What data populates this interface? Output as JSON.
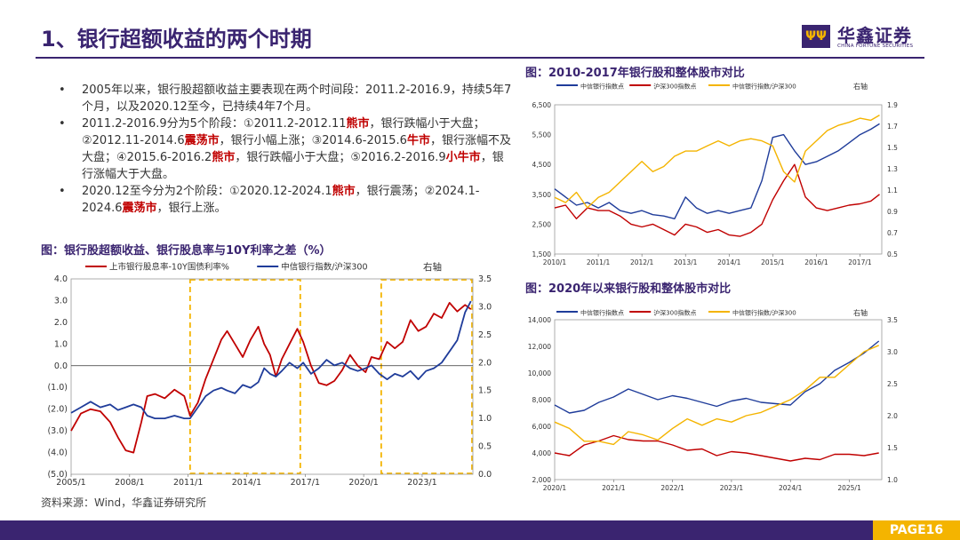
{
  "header": {
    "title": "1、银行超额收益的两个时期"
  },
  "logo": {
    "cn": "华鑫证券",
    "en": "CHINA FORTUNE SECURITIES",
    "mark": "ΨΨ"
  },
  "bullets": [
    {
      "segments": [
        {
          "t": "2005年以来，银行股超额收益主要表现在两个时间段：2011.2-2016.9，持续5年7个月，以及2020.12至今，已持续4年7个月。",
          "r": false
        }
      ]
    },
    {
      "segments": [
        {
          "t": "2011.2-2016.9分为5个阶段：①2011.2-2012.11",
          "r": false
        },
        {
          "t": "熊市",
          "r": true
        },
        {
          "t": "，银行跌幅小于大盘；②2012.11-2014.6",
          "r": false
        },
        {
          "t": "震荡市",
          "r": true
        },
        {
          "t": "，银行小幅上涨；③2014.6-2015.6",
          "r": false
        },
        {
          "t": "牛市",
          "r": true
        },
        {
          "t": "，银行涨幅不及大盘；④2015.6-2016.2",
          "r": false
        },
        {
          "t": "熊市",
          "r": true
        },
        {
          "t": "，银行跌幅小于大盘；⑤2016.2-2016.9",
          "r": false
        },
        {
          "t": "小牛市",
          "r": true
        },
        {
          "t": "，银行涨幅大于大盘。",
          "r": false
        }
      ]
    },
    {
      "segments": [
        {
          "t": "2020.12至今分为2个阶段：①2020.12-2024.1",
          "r": false
        },
        {
          "t": "熊市",
          "r": true
        },
        {
          "t": "，银行震荡；②2024.1-2024.6",
          "r": false
        },
        {
          "t": "震荡市",
          "r": true
        },
        {
          "t": "，银行上涨。",
          "r": false
        }
      ]
    }
  ],
  "source": "资料来源：Wind，华鑫证券研究所",
  "page": "PAGE16",
  "colors": {
    "red": "#c00000",
    "blue": "#1f3c9a",
    "yellow": "#f4b400",
    "purple": "#3a2470"
  },
  "chart_data": [
    {
      "type": "line",
      "title": "图：银行股超额收益、银行股息率与10Y利率之差（%）",
      "x_ticks": [
        "2005/1",
        "2008/1",
        "2011/1",
        "2014/1",
        "2017/1",
        "2020/1",
        "2023/1"
      ],
      "xlim": [
        2005.0,
        2025.6
      ],
      "left_axis": {
        "ticks": [
          "4.0",
          "3.0",
          "2.0",
          "1.0",
          "0.0",
          "(1.0)",
          "(2.0)",
          "(3.0)",
          "(4.0)",
          "(5.0)"
        ],
        "ylim": [
          -5,
          4
        ]
      },
      "right_axis": {
        "label": "右轴",
        "ticks": [
          "3.5",
          "3.0",
          "2.5",
          "2.0",
          "1.5",
          "1.0",
          "0.5",
          "0.0"
        ],
        "ylim": [
          0,
          3.5
        ]
      },
      "highlight_periods": [
        [
          2011.1,
          2016.75
        ],
        [
          2020.9,
          2025.6
        ]
      ],
      "series": [
        {
          "name": "上市银行股息率-10Y国债利率%",
          "axis": "left",
          "color": "#c00000",
          "x": [
            2005.0,
            2005.5,
            2006.0,
            2006.5,
            2007.0,
            2007.4,
            2007.8,
            2008.2,
            2008.6,
            2008.9,
            2009.3,
            2009.8,
            2010.3,
            2010.8,
            2011.1,
            2011.5,
            2011.9,
            2012.3,
            2012.7,
            2013.0,
            2013.4,
            2013.8,
            2014.2,
            2014.6,
            2014.9,
            2015.2,
            2015.5,
            2015.8,
            2016.2,
            2016.6,
            2016.9,
            2017.3,
            2017.7,
            2018.1,
            2018.5,
            2018.9,
            2019.3,
            2019.7,
            2020.1,
            2020.4,
            2020.8,
            2021.2,
            2021.6,
            2022.0,
            2022.4,
            2022.8,
            2023.2,
            2023.6,
            2024.0,
            2024.4,
            2024.8,
            2025.2,
            2025.5
          ],
          "y": [
            -3.0,
            -2.2,
            -2.0,
            -2.1,
            -2.6,
            -3.3,
            -3.9,
            -4.0,
            -2.6,
            -1.4,
            -1.3,
            -1.5,
            -1.1,
            -1.4,
            -2.3,
            -1.7,
            -0.6,
            0.3,
            1.2,
            1.6,
            1.0,
            0.4,
            1.2,
            1.8,
            1.0,
            0.5,
            -0.5,
            0.3,
            1.0,
            1.7,
            1.1,
            0.0,
            -0.8,
            -0.9,
            -0.7,
            -0.2,
            0.5,
            0.0,
            -0.3,
            0.4,
            0.3,
            1.1,
            0.8,
            1.1,
            2.1,
            1.6,
            1.8,
            2.4,
            2.2,
            2.9,
            2.5,
            2.8,
            2.6
          ]
        },
        {
          "name": "中信银行指数/沪深300",
          "axis": "right",
          "color": "#1f3c9a",
          "x": [
            2005.0,
            2005.5,
            2006.0,
            2006.5,
            2007.0,
            2007.4,
            2007.8,
            2008.2,
            2008.6,
            2008.9,
            2009.3,
            2009.8,
            2010.3,
            2010.8,
            2011.1,
            2011.5,
            2011.9,
            2012.3,
            2012.7,
            2013.0,
            2013.4,
            2013.8,
            2014.2,
            2014.6,
            2014.9,
            2015.2,
            2015.5,
            2015.8,
            2016.2,
            2016.6,
            2016.9,
            2017.3,
            2017.7,
            2018.1,
            2018.5,
            2018.9,
            2019.3,
            2019.7,
            2020.1,
            2020.4,
            2020.8,
            2021.2,
            2021.6,
            2022.0,
            2022.4,
            2022.8,
            2023.2,
            2023.6,
            2024.0,
            2024.4,
            2024.8,
            2025.2,
            2025.5
          ],
          "y": [
            1.1,
            1.2,
            1.3,
            1.2,
            1.25,
            1.15,
            1.2,
            1.25,
            1.2,
            1.05,
            1.0,
            1.0,
            1.05,
            1.0,
            1.0,
            1.2,
            1.4,
            1.5,
            1.55,
            1.5,
            1.45,
            1.6,
            1.55,
            1.65,
            1.9,
            1.8,
            1.75,
            1.85,
            2.0,
            1.9,
            2.0,
            1.8,
            1.9,
            2.05,
            1.95,
            2.0,
            1.9,
            1.85,
            1.9,
            1.95,
            1.8,
            1.7,
            1.8,
            1.75,
            1.85,
            1.7,
            1.85,
            1.9,
            2.0,
            2.2,
            2.4,
            2.9,
            3.1
          ]
        }
      ]
    },
    {
      "type": "line",
      "title": "图：2010-2017年银行股和整体股市对比",
      "x_ticks": [
        "2010/1",
        "2011/1",
        "2012/1",
        "2013/1",
        "2014/1",
        "2015/1",
        "2016/1",
        "2017/1"
      ],
      "xlim": [
        2010.0,
        2017.5
      ],
      "left_axis": {
        "ticks": [
          "6,500",
          "5,500",
          "4,500",
          "3,500",
          "2,500",
          "1,500"
        ],
        "ylim": [
          1500,
          7000
        ]
      },
      "right_axis": {
        "label": "右轴",
        "ticks": [
          "1.9",
          "1.7",
          "1.5",
          "1.3",
          "1.1",
          "0.9",
          "0.7",
          "0.5"
        ],
        "ylim": [
          0.5,
          1.95
        ]
      },
      "series": [
        {
          "name": "中信银行指数点",
          "axis": "left",
          "color": "#1f3c9a",
          "x": [
            2010.0,
            2010.25,
            2010.5,
            2010.75,
            2011.0,
            2011.25,
            2011.5,
            2011.75,
            2012.0,
            2012.25,
            2012.5,
            2012.75,
            2013.0,
            2013.25,
            2013.5,
            2013.75,
            2014.0,
            2014.25,
            2014.5,
            2014.75,
            2015.0,
            2015.25,
            2015.5,
            2015.75,
            2016.0,
            2016.25,
            2016.5,
            2016.75,
            2017.0,
            2017.25,
            2017.45
          ],
          "y": [
            3900,
            3600,
            3300,
            3400,
            3200,
            3400,
            3100,
            3000,
            3100,
            2950,
            2900,
            2800,
            3600,
            3200,
            3000,
            3100,
            3000,
            3100,
            3200,
            4200,
            5800,
            5900,
            5300,
            4800,
            4900,
            5100,
            5300,
            5600,
            5900,
            6100,
            6300
          ]
        },
        {
          "name": "沪深300指数点",
          "axis": "left",
          "color": "#c00000",
          "x": [
            2010.0,
            2010.25,
            2010.5,
            2010.75,
            2011.0,
            2011.25,
            2011.5,
            2011.75,
            2012.0,
            2012.25,
            2012.5,
            2012.75,
            2013.0,
            2013.25,
            2013.5,
            2013.75,
            2014.0,
            2014.25,
            2014.5,
            2014.75,
            2015.0,
            2015.25,
            2015.5,
            2015.75,
            2016.0,
            2016.25,
            2016.5,
            2016.75,
            2017.0,
            2017.25,
            2017.45
          ],
          "y": [
            3200,
            3300,
            2800,
            3200,
            3100,
            3100,
            2900,
            2600,
            2500,
            2600,
            2400,
            2200,
            2600,
            2500,
            2300,
            2400,
            2200,
            2150,
            2300,
            2600,
            3500,
            4200,
            4800,
            3600,
            3200,
            3100,
            3200,
            3300,
            3350,
            3450,
            3700
          ]
        },
        {
          "name": "中信银行指数/沪深300",
          "axis": "right",
          "color": "#f4b400",
          "x": [
            2010.0,
            2010.25,
            2010.5,
            2010.75,
            2011.0,
            2011.25,
            2011.5,
            2011.75,
            2012.0,
            2012.25,
            2012.5,
            2012.75,
            2013.0,
            2013.25,
            2013.5,
            2013.75,
            2014.0,
            2014.25,
            2014.5,
            2014.75,
            2015.0,
            2015.25,
            2015.5,
            2015.75,
            2016.0,
            2016.25,
            2016.5,
            2016.75,
            2017.0,
            2017.25,
            2017.45
          ],
          "y": [
            1.05,
            1.0,
            1.1,
            0.95,
            1.05,
            1.1,
            1.2,
            1.3,
            1.4,
            1.3,
            1.35,
            1.45,
            1.5,
            1.5,
            1.55,
            1.6,
            1.55,
            1.6,
            1.62,
            1.6,
            1.55,
            1.3,
            1.2,
            1.5,
            1.6,
            1.7,
            1.75,
            1.78,
            1.82,
            1.8,
            1.85
          ]
        }
      ]
    },
    {
      "type": "line",
      "title": "图：2020年以来银行股和整体股市对比",
      "x_ticks": [
        "2020/1",
        "2021/1",
        "2022/1",
        "2023/1",
        "2024/1",
        "2025/1"
      ],
      "xlim": [
        2020.0,
        2025.55
      ],
      "left_axis": {
        "ticks": [
          "14,000",
          "12,000",
          "10,000",
          "8,000",
          "6,000",
          "4,000",
          "2,000"
        ],
        "ylim": [
          2000,
          14000
        ]
      },
      "right_axis": {
        "label": "右轴",
        "ticks": [
          "3.5",
          "3.0",
          "2.5",
          "2.0",
          "1.5",
          "1.0"
        ],
        "ylim": [
          1.0,
          3.5
        ]
      },
      "series": [
        {
          "name": "中信银行指数点",
          "axis": "left",
          "color": "#1f3c9a",
          "x": [
            2020.0,
            2020.25,
            2020.5,
            2020.75,
            2021.0,
            2021.25,
            2021.5,
            2021.75,
            2022.0,
            2022.25,
            2022.5,
            2022.75,
            2023.0,
            2023.25,
            2023.5,
            2023.75,
            2024.0,
            2024.25,
            2024.5,
            2024.75,
            2025.0,
            2025.25,
            2025.5
          ],
          "y": [
            7600,
            7000,
            7200,
            7800,
            8200,
            8800,
            8400,
            8000,
            8300,
            8100,
            7800,
            7500,
            7900,
            8100,
            7800,
            7700,
            7600,
            8600,
            9200,
            10200,
            10800,
            11500,
            12400
          ]
        },
        {
          "name": "沪深300指数点",
          "axis": "left",
          "color": "#c00000",
          "x": [
            2020.0,
            2020.25,
            2020.5,
            2020.75,
            2021.0,
            2021.25,
            2021.5,
            2021.75,
            2022.0,
            2022.25,
            2022.5,
            2022.75,
            2023.0,
            2023.25,
            2023.5,
            2023.75,
            2024.0,
            2024.25,
            2024.5,
            2024.75,
            2025.0,
            2025.25,
            2025.5
          ],
          "y": [
            4000,
            3800,
            4600,
            4900,
            5300,
            5000,
            4900,
            4900,
            4600,
            4200,
            4300,
            3800,
            4100,
            4000,
            3800,
            3600,
            3400,
            3600,
            3500,
            3900,
            3900,
            3800,
            4000
          ]
        },
        {
          "name": "中信银行指数/沪深300",
          "axis": "right",
          "color": "#f4b400",
          "x": [
            2020.0,
            2020.25,
            2020.5,
            2020.75,
            2021.0,
            2021.25,
            2021.5,
            2021.75,
            2022.0,
            2022.25,
            2022.5,
            2022.75,
            2023.0,
            2023.25,
            2023.5,
            2023.75,
            2024.0,
            2024.25,
            2024.5,
            2024.75,
            2025.0,
            2025.25,
            2025.5
          ],
          "y": [
            1.9,
            1.8,
            1.6,
            1.6,
            1.55,
            1.75,
            1.7,
            1.62,
            1.8,
            1.95,
            1.85,
            1.95,
            1.9,
            2.0,
            2.05,
            2.15,
            2.25,
            2.4,
            2.6,
            2.6,
            2.8,
            3.0,
            3.1
          ]
        }
      ]
    }
  ]
}
